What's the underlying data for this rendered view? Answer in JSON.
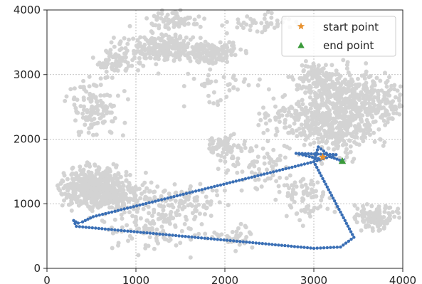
{
  "chart_data": {
    "type": "scatter",
    "title": "",
    "xlabel": "",
    "ylabel": "",
    "xlim": [
      0,
      4000
    ],
    "ylim": [
      0,
      4000
    ],
    "x_ticks": [
      0,
      1000,
      2000,
      3000,
      4000
    ],
    "y_ticks": [
      0,
      1000,
      2000,
      3000,
      4000
    ],
    "x_tick_labels": [
      "0",
      "1000",
      "2000",
      "3000",
      "4000"
    ],
    "y_tick_labels": [
      "0",
      "1000",
      "2000",
      "3000",
      "4000"
    ],
    "grid": true,
    "legend": {
      "placement": "top-right",
      "entries": [
        {
          "label": "start point",
          "marker": "star",
          "color": "#e8912e"
        },
        {
          "label": "end point",
          "marker": "triangle",
          "color": "#3a9a3a"
        }
      ]
    },
    "colors": {
      "background_points": "#d3d3d3",
      "path": "#3a6fb5",
      "start": "#e8912e",
      "end": "#3a9a3a"
    },
    "background_clusters": [
      {
        "cx": 500,
        "cy": 1250,
        "sx": 250,
        "sy": 200,
        "n": 420
      },
      {
        "cx": 800,
        "cy": 1150,
        "sx": 300,
        "sy": 250,
        "n": 180
      },
      {
        "cx": 1300,
        "cy": 3400,
        "sx": 300,
        "sy": 180,
        "n": 220
      },
      {
        "cx": 1850,
        "cy": 3350,
        "sx": 250,
        "sy": 120,
        "n": 160
      },
      {
        "cx": 800,
        "cy": 3200,
        "sx": 150,
        "sy": 150,
        "n": 80
      },
      {
        "cx": 1400,
        "cy": 3850,
        "sx": 250,
        "sy": 120,
        "n": 70
      },
      {
        "cx": 550,
        "cy": 2500,
        "sx": 200,
        "sy": 300,
        "n": 130
      },
      {
        "cx": 3250,
        "cy": 2300,
        "sx": 350,
        "sy": 350,
        "n": 500
      },
      {
        "cx": 3400,
        "cy": 2750,
        "sx": 250,
        "sy": 250,
        "n": 200
      },
      {
        "cx": 3000,
        "cy": 2950,
        "sx": 150,
        "sy": 150,
        "n": 90
      },
      {
        "cx": 3850,
        "cy": 2600,
        "sx": 150,
        "sy": 250,
        "n": 90
      },
      {
        "cx": 3700,
        "cy": 800,
        "sx": 180,
        "sy": 150,
        "n": 110
      },
      {
        "cx": 2000,
        "cy": 1900,
        "sx": 120,
        "sy": 120,
        "n": 70
      },
      {
        "cx": 1500,
        "cy": 1000,
        "sx": 300,
        "sy": 250,
        "n": 110
      },
      {
        "cx": 2400,
        "cy": 1600,
        "sx": 300,
        "sy": 250,
        "n": 80
      },
      {
        "cx": 2900,
        "cy": 1100,
        "sx": 200,
        "sy": 250,
        "n": 80
      },
      {
        "cx": 1200,
        "cy": 600,
        "sx": 300,
        "sy": 250,
        "n": 90
      },
      {
        "cx": 2100,
        "cy": 500,
        "sx": 200,
        "sy": 150,
        "n": 40
      },
      {
        "cx": 2400,
        "cy": 3800,
        "sx": 250,
        "sy": 120,
        "n": 50
      },
      {
        "cx": 2600,
        "cy": 2300,
        "sx": 200,
        "sy": 150,
        "n": 40
      },
      {
        "cx": 2000,
        "cy": 2800,
        "sx": 300,
        "sy": 200,
        "n": 40
      }
    ],
    "route": [
      [
        3050,
        1700
      ],
      [
        2950,
        1730
      ],
      [
        2800,
        1780
      ],
      [
        3250,
        1760
      ],
      [
        3000,
        1650
      ],
      [
        3450,
        480
      ],
      [
        3300,
        330
      ],
      [
        3000,
        310
      ],
      [
        330,
        650
      ],
      [
        300,
        740
      ],
      [
        350,
        700
      ],
      [
        400,
        720
      ],
      [
        520,
        800
      ],
      [
        3000,
        1650
      ],
      [
        3050,
        1880
      ],
      [
        3200,
        1720
      ],
      [
        3320,
        1660
      ],
      [
        3350,
        1700
      ]
    ],
    "start_point": [
      3100,
      1720
    ],
    "end_point": [
      3320,
      1660
    ]
  }
}
